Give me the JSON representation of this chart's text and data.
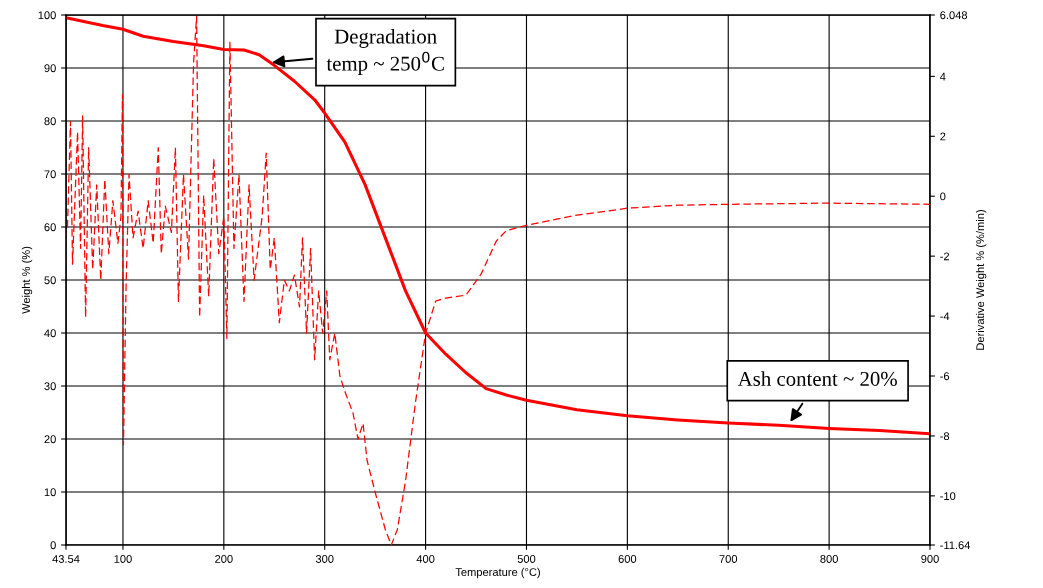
{
  "chart_data": {
    "type": "line",
    "xlabel": "Temperature (°C)",
    "ylabel": "Weight % (%)",
    "y2label": "Derivative Weight % (%/min)",
    "xlim": [
      43.54,
      900
    ],
    "xticks": [
      43.54,
      100,
      200,
      300,
      400,
      500,
      600,
      700,
      800,
      900
    ],
    "ylim": [
      0,
      100
    ],
    "yticks": [
      0,
      10,
      20,
      30,
      40,
      50,
      60,
      70,
      80,
      90,
      100
    ],
    "y2lim": [
      -11.64,
      6.048
    ],
    "y2ticks": [
      -11.64,
      -10,
      -8,
      -6,
      -4,
      -2,
      0,
      2,
      4,
      6.048
    ],
    "grid": true,
    "legend": false,
    "series": [
      {
        "color": "#ff0000",
        "line_style": "solid",
        "x": [
          43.54,
          60,
          80,
          100,
          120,
          150,
          180,
          200,
          220,
          235,
          250,
          270,
          290,
          300,
          320,
          340,
          360,
          380,
          400,
          420,
          440,
          460,
          480,
          500,
          550,
          600,
          650,
          700,
          750,
          800,
          850,
          900
        ],
        "values": [
          99.5,
          98.8,
          98,
          97.3,
          96,
          95,
          94.2,
          93.5,
          93.4,
          92.5,
          90.5,
          87.5,
          84,
          81.5,
          76,
          68,
          58,
          48,
          40,
          36,
          32.5,
          29.5,
          28.3,
          27.3,
          25.5,
          24.4,
          23.6,
          23,
          22.6,
          22,
          21.6,
          21
        ]
      },
      {
        "color": "#ff0000",
        "line_style": "dashed",
        "axis": "y2",
        "x": [
          45,
          48,
          50,
          55,
          58,
          60,
          63,
          66,
          70,
          74,
          78,
          82,
          86,
          90,
          95,
          98,
          99.5,
          100.5,
          103,
          106,
          110,
          115,
          120,
          125,
          130,
          135,
          138,
          142,
          148,
          152,
          155,
          160,
          165,
          170,
          173,
          176,
          180,
          185,
          190,
          195,
          200,
          203,
          206,
          210,
          215,
          220,
          225,
          230,
          238,
          242,
          246,
          250,
          255,
          260,
          265,
          270,
          275,
          278,
          282,
          286,
          290,
          294,
          298,
          302,
          305,
          310,
          315,
          320,
          328,
          333,
          338,
          342,
          350,
          360,
          366,
          372,
          380,
          390,
          400,
          410,
          420,
          440,
          455,
          470,
          480,
          500,
          550,
          580,
          600,
          650,
          700,
          800,
          900
        ],
        "values": [
          -1.04,
          2.5,
          -2.27,
          2.15,
          -1.74,
          2.68,
          -4.04,
          1.62,
          -2.45,
          0.38,
          -2.8,
          0.56,
          -1.92,
          -0.15,
          -1.57,
          -0.68,
          3.39,
          -8.29,
          -3.16,
          0.73,
          -1.39,
          -0.5,
          -1.74,
          -0.15,
          -1.57,
          1.62,
          -1.92,
          -0.33,
          -1.21,
          1.62,
          -3.51,
          0.73,
          -2.1,
          4.45,
          6.0,
          -4.04,
          0.03,
          -3.34,
          1.26,
          -1.92,
          -0.68,
          -4.75,
          5.16,
          -1.74,
          0.73,
          -3.51,
          0.38,
          -2.8,
          -0.68,
          1.44,
          -2.45,
          -1.39,
          -4.22,
          -2.8,
          -3.16,
          -2.63,
          -3.69,
          -1.39,
          -4.57,
          -1.74,
          -5.46,
          -3.16,
          -4.57,
          -3.16,
          -5.46,
          -4.57,
          -5.99,
          -6.52,
          -7.23,
          -8.11,
          -7.58,
          -8.82,
          -9.88,
          -11.12,
          -11.64,
          -11.12,
          -9.53,
          -6.87,
          -4.57,
          -3.5,
          -3.4,
          -3.3,
          -2.6,
          -1.5,
          -1.15,
          -0.97,
          -0.63,
          -0.5,
          -0.4,
          -0.3,
          -0.27,
          -0.23,
          -0.27
        ]
      }
    ],
    "annotations": [
      {
        "text": "Degradation\ntemp ~ 250$^{0}$C",
        "x": 245,
        "y": 91
      },
      {
        "text": "Ash content ~ 20%",
        "x": 760,
        "y": 22.8
      }
    ]
  }
}
